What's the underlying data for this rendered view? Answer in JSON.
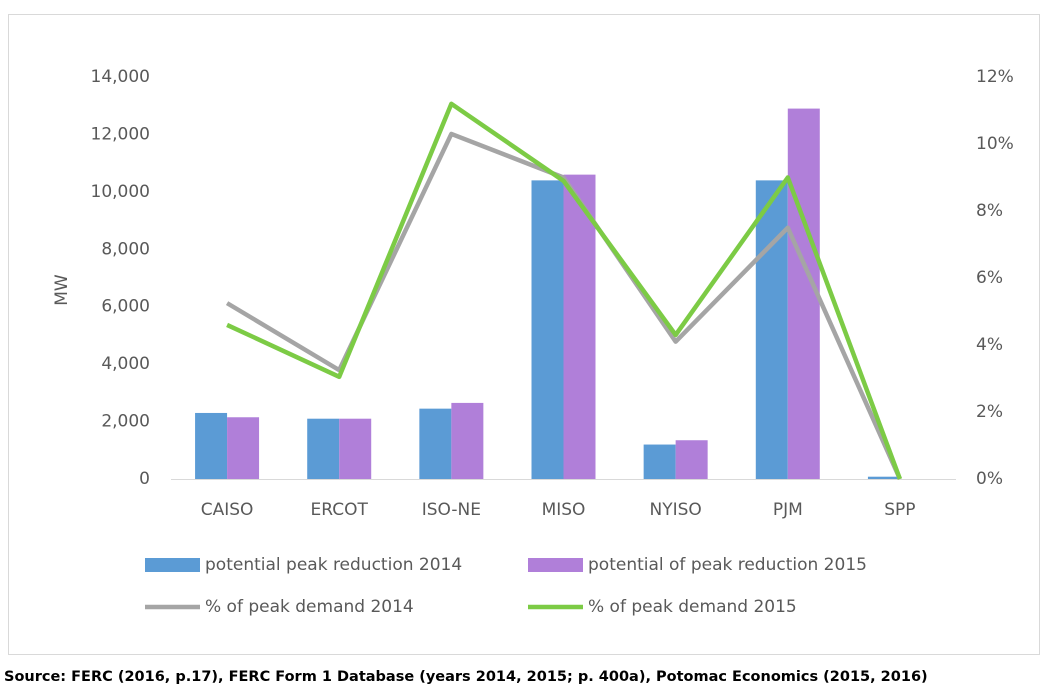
{
  "chart_data": {
    "type": "bar-line",
    "y_label": "MW",
    "categories": [
      "CAISO",
      "ERCOT",
      "ISO-NE",
      "MISO",
      "NYISO",
      "PJM",
      "SPP"
    ],
    "series": [
      {
        "name": "potential peak reduction 2014",
        "color": "#5b9bd5",
        "type": "bar",
        "values": [
          2300,
          2100,
          2450,
          10400,
          1200,
          10400,
          80
        ]
      },
      {
        "name": "potential of peak reduction 2015",
        "color": "#b07fd9",
        "type": "bar",
        "values": [
          2150,
          2100,
          2650,
          10600,
          1350,
          12900,
          0
        ]
      },
      {
        "name": "% of peak demand 2014",
        "color": "#a5a5a5",
        "type": "line",
        "axis": "y2",
        "values": [
          5.25,
          3.25,
          10.3,
          9.0,
          4.1,
          7.5,
          0
        ]
      },
      {
        "name": "% of peak demand 2015",
        "color": "#7ccb45",
        "type": "line",
        "axis": "y2",
        "values": [
          4.6,
          3.05,
          11.2,
          8.9,
          4.3,
          9.0,
          0
        ]
      }
    ],
    "ylim": [
      0,
      14000
    ],
    "yticks": [
      0,
      {
        "value": 2000,
        "label": "2,000"
      },
      {
        "value": 4000,
        "label": "4,000"
      },
      {
        "value": 6000,
        "label": "6,000"
      },
      {
        "value": 8000,
        "label": "8,000"
      },
      {
        "value": 10000,
        "label": "10,000"
      },
      {
        "value": 12000,
        "label": "12,000"
      },
      {
        "value": 14000,
        "label": "14,000"
      }
    ],
    "y2lim": [
      0,
      12
    ],
    "y2ticks": [
      {
        "value": 0,
        "label": "0%"
      },
      {
        "value": 2,
        "label": "2%"
      },
      {
        "value": 4,
        "label": "4%"
      },
      {
        "value": 6,
        "label": "6%"
      },
      {
        "value": 8,
        "label": "8%"
      },
      {
        "value": 10,
        "label": "10%"
      },
      {
        "value": 12,
        "label": "12%"
      }
    ],
    "grid": false,
    "legend": "bottom",
    "source": "Source: FERC (2016, p.17), FERC Form 1 Database (years 2014, 2015; p. 400a), Potomac Economics (2015, 2016)"
  }
}
